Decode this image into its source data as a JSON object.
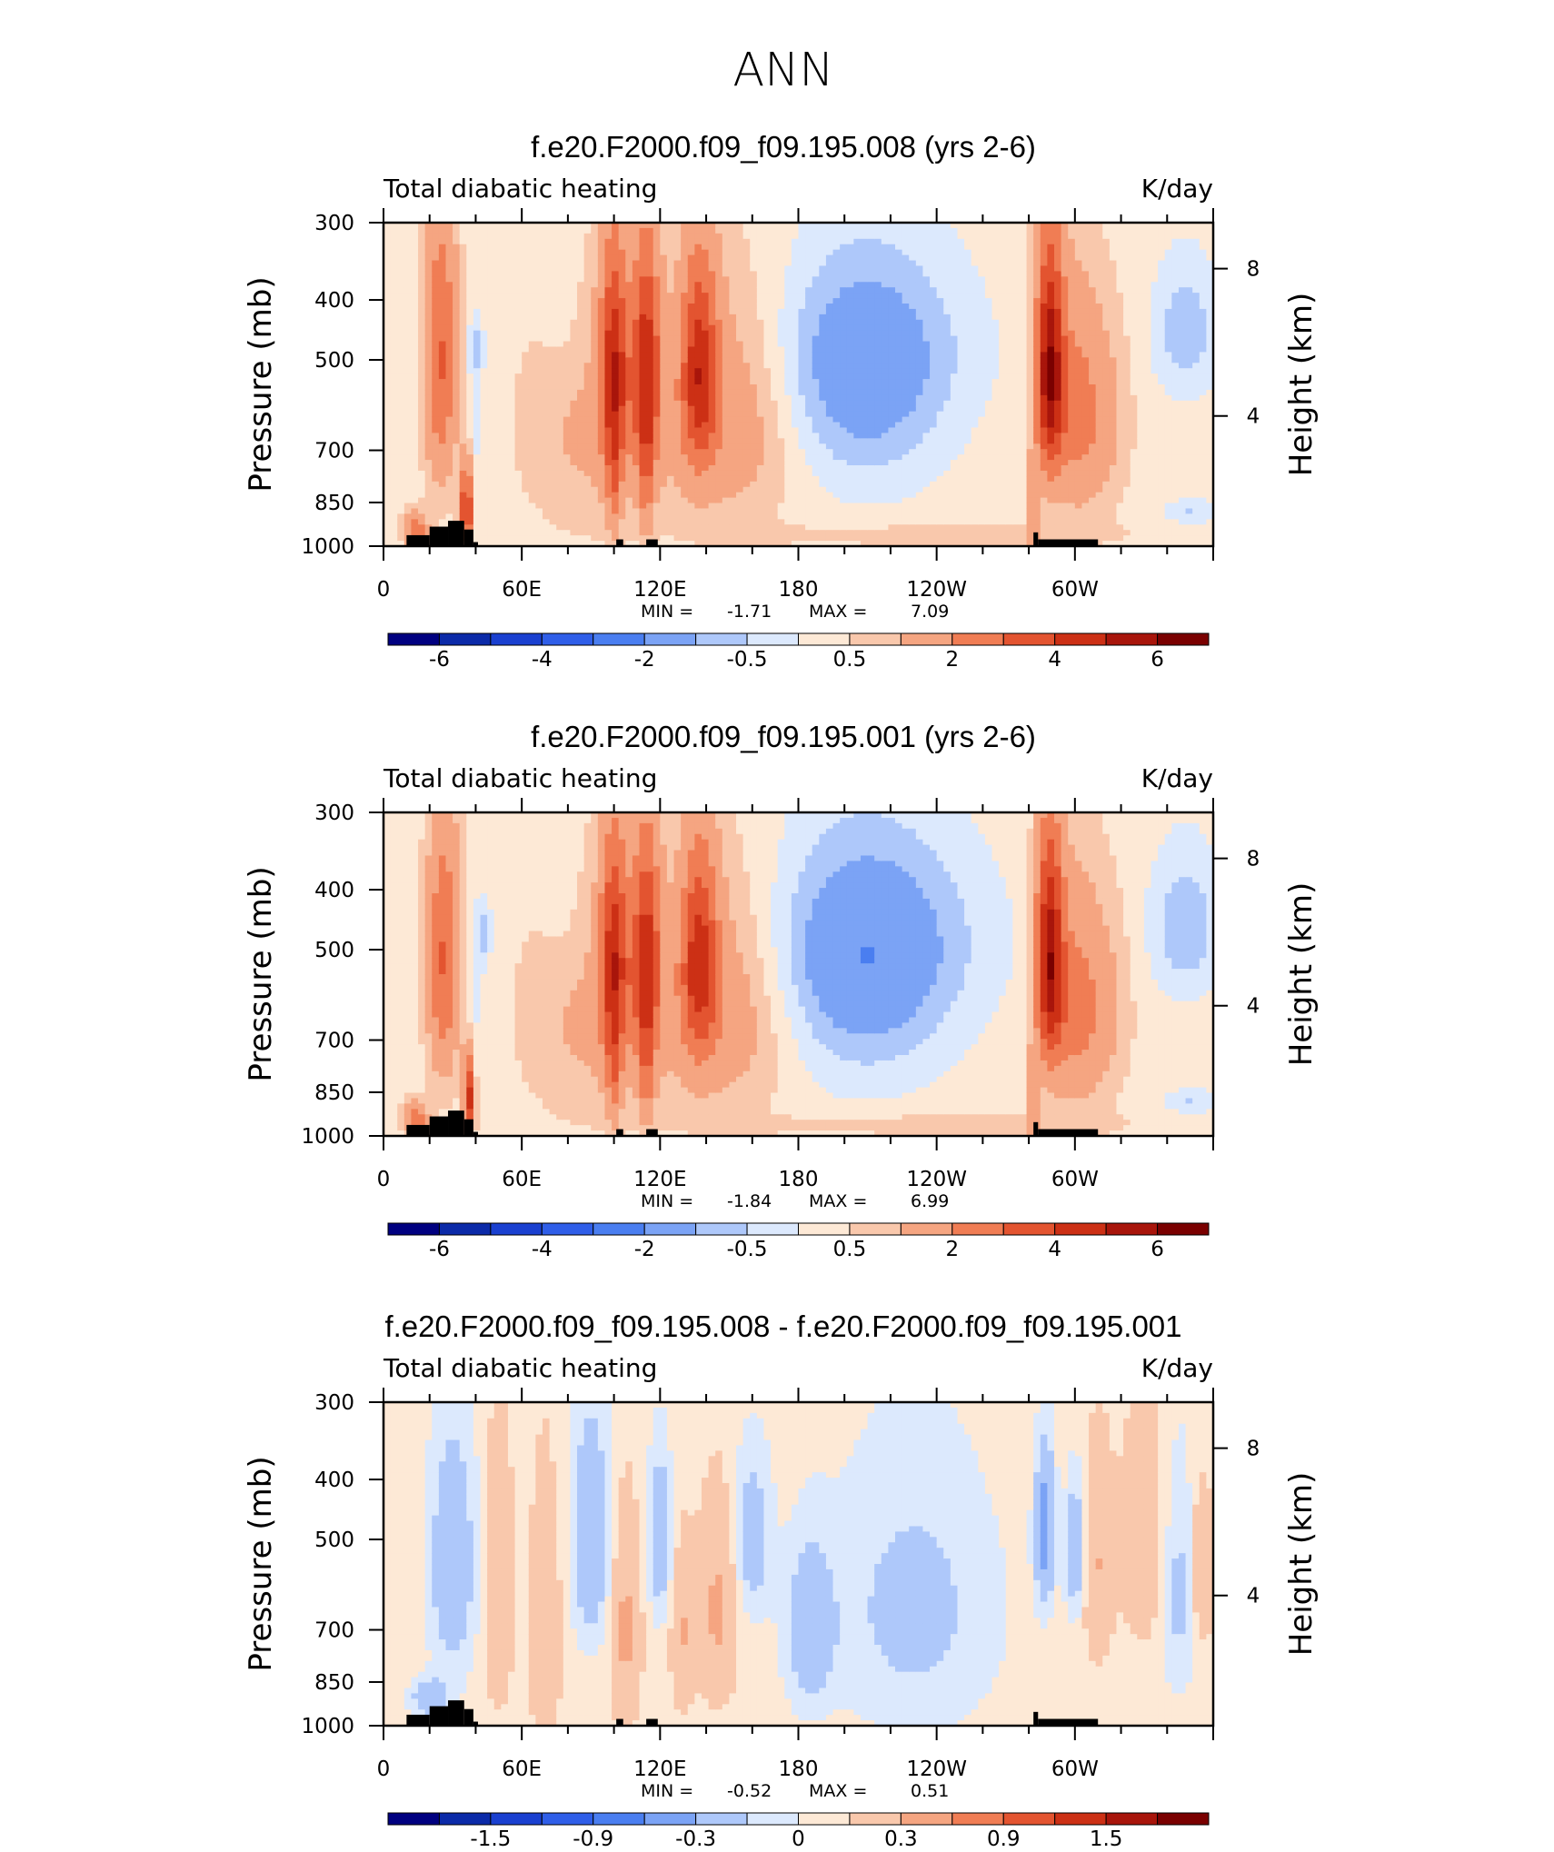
{
  "figure": {
    "main_title": "ANN"
  },
  "chart_data": [
    {
      "type": "heatmap",
      "title": "f.e20.F2000.f09_f09.195.008 (yrs 2-6)",
      "left_label": "Total diabatic heating",
      "right_label": "K/day",
      "xlabel": "",
      "ylabel": "Pressure (mb)",
      "ylabel_right": "Height (km)",
      "x_ticks": [
        "0",
        "60E",
        "120E",
        "180",
        "120W",
        "60W"
      ],
      "y_ticks": [
        "300",
        "400",
        "500",
        "700",
        "850",
        "1000"
      ],
      "y_right_ticks": [
        "8",
        "4"
      ],
      "xlim": [
        0,
        360
      ],
      "ylim": [
        1000,
        300
      ],
      "stats": {
        "min_label": "MIN =",
        "min": "-1.71",
        "max_label": "MAX =",
        "max": "7.09"
      },
      "colorbar": {
        "colors": [
          "#000080",
          "#0b2aa8",
          "#1a40d0",
          "#2f5ee8",
          "#4a7ef0",
          "#7ba3f5",
          "#aec8fa",
          "#dce9fd",
          "#fde9d6",
          "#f9c8ac",
          "#f5a581",
          "#f07d54",
          "#e35430",
          "#cc3015",
          "#a8150b",
          "#7a0000"
        ],
        "tick_labels": [
          "-6",
          "-4",
          "-2",
          "-0.5",
          "0.5",
          "2",
          "4",
          "6"
        ]
      },
      "features": [
        {
          "kind": "blob",
          "lon": 208,
          "p": 560,
          "rlon": 35,
          "rp": 230,
          "v": -1.4
        },
        {
          "kind": "blob",
          "lon": 212,
          "p": 470,
          "rlon": 45,
          "rp": 150,
          "v": -0.8
        },
        {
          "kind": "blob",
          "lon": 348,
          "p": 450,
          "rlon": 14,
          "rp": 110,
          "v": -1.1
        },
        {
          "kind": "blob",
          "lon": 350,
          "p": 880,
          "rlon": 10,
          "rp": 40,
          "v": -0.8
        },
        {
          "kind": "blob",
          "lon": 40,
          "p": 480,
          "rlon": 3,
          "rp": 40,
          "v": -1.0
        },
        {
          "kind": "blob",
          "lon": 40,
          "p": 620,
          "rlon": 5,
          "rp": 280,
          "v": -0.4
        },
        {
          "kind": "blob",
          "lon": 78,
          "p": 450,
          "rlon": 10,
          "rp": 120,
          "v": -0.3
        },
        {
          "kind": "blob",
          "lon": 25,
          "p": 500,
          "rlon": 7,
          "rp": 260,
          "v": 2.8
        },
        {
          "kind": "blob",
          "lon": 36,
          "p": 870,
          "rlon": 2.5,
          "rp": 140,
          "v": 4.5
        },
        {
          "kind": "blob",
          "lon": 14,
          "p": 940,
          "rlon": 5,
          "rp": 60,
          "v": 2.5
        },
        {
          "kind": "blob",
          "lon": 100,
          "p": 520,
          "rlon": 6,
          "rp": 220,
          "v": 4.2
        },
        {
          "kind": "blob",
          "lon": 114,
          "p": 520,
          "rlon": 6,
          "rp": 220,
          "v": 4.2
        },
        {
          "kind": "blob",
          "lon": 100,
          "p": 800,
          "rlon": 3,
          "rp": 160,
          "v": 1.5
        },
        {
          "kind": "blob",
          "lon": 114,
          "p": 800,
          "rlon": 3,
          "rp": 160,
          "v": 1.5
        },
        {
          "kind": "blob",
          "lon": 137,
          "p": 520,
          "rlon": 8,
          "rp": 200,
          "v": 3.8
        },
        {
          "kind": "blob",
          "lon": 150,
          "p": 620,
          "rlon": 28,
          "rp": 270,
          "v": 1.4
        },
        {
          "kind": "blob",
          "lon": 90,
          "p": 640,
          "rlon": 30,
          "rp": 280,
          "v": 0.9
        },
        {
          "kind": "blob",
          "lon": 289,
          "p": 520,
          "rlon": 6,
          "rp": 220,
          "v": 5.6
        },
        {
          "kind": "blob",
          "lon": 282,
          "p": 870,
          "rlon": 2,
          "rp": 150,
          "v": 2.2
        },
        {
          "kind": "blob",
          "lon": 300,
          "p": 600,
          "rlon": 10,
          "rp": 250,
          "v": 1.8
        },
        {
          "kind": "blob",
          "lon": 312,
          "p": 620,
          "rlon": 12,
          "rp": 230,
          "v": 1.0
        },
        {
          "kind": "blob",
          "lon": 240,
          "p": 960,
          "rlon": 80,
          "rp": 40,
          "v": 0.6
        }
      ],
      "background_value": 0.25,
      "topography": [
        [
          10,
          20,
          960
        ],
        [
          20,
          28,
          930
        ],
        [
          28,
          35,
          910
        ],
        [
          35,
          39,
          940
        ],
        [
          39,
          41,
          985
        ],
        [
          101,
          104,
          975
        ],
        [
          114,
          119,
          975
        ],
        [
          282,
          284,
          950
        ],
        [
          284,
          310,
          975
        ]
      ]
    },
    {
      "type": "heatmap",
      "title": "f.e20.F2000.f09_f09.195.001 (yrs 2-6)",
      "left_label": "Total diabatic heating",
      "right_label": "K/day",
      "xlabel": "",
      "ylabel": "Pressure (mb)",
      "ylabel_right": "Height (km)",
      "x_ticks": [
        "0",
        "60E",
        "120E",
        "180",
        "120W",
        "60W"
      ],
      "y_ticks": [
        "300",
        "400",
        "500",
        "700",
        "850",
        "1000"
      ],
      "y_right_ticks": [
        "8",
        "4"
      ],
      "xlim": [
        0,
        360
      ],
      "ylim": [
        1000,
        300
      ],
      "stats": {
        "min_label": "MIN =",
        "min": "-1.84",
        "max_label": "MAX =",
        "max": "6.99"
      },
      "colorbar": {
        "colors": [
          "#000080",
          "#0b2aa8",
          "#1a40d0",
          "#2f5ee8",
          "#4a7ef0",
          "#7ba3f5",
          "#aec8fa",
          "#dce9fd",
          "#fde9d6",
          "#f9c8ac",
          "#f5a581",
          "#f07d54",
          "#e35430",
          "#cc3015",
          "#a8150b",
          "#7a0000"
        ],
        "tick_labels": [
          "-6",
          "-4",
          "-2",
          "-0.5",
          "0.5",
          "2",
          "4",
          "6"
        ]
      },
      "features": [
        {
          "kind": "blob",
          "lon": 208,
          "p": 560,
          "rlon": 38,
          "rp": 240,
          "v": -1.5
        },
        {
          "kind": "blob",
          "lon": 214,
          "p": 470,
          "rlon": 48,
          "rp": 160,
          "v": -0.9
        },
        {
          "kind": "blob",
          "lon": 348,
          "p": 460,
          "rlon": 15,
          "rp": 120,
          "v": -1.2
        },
        {
          "kind": "blob",
          "lon": 350,
          "p": 880,
          "rlon": 10,
          "rp": 40,
          "v": -0.8
        },
        {
          "kind": "blob",
          "lon": 44,
          "p": 470,
          "rlon": 3,
          "rp": 50,
          "v": -1.0
        },
        {
          "kind": "blob",
          "lon": 40,
          "p": 620,
          "rlon": 5,
          "rp": 280,
          "v": -0.4
        },
        {
          "kind": "blob",
          "lon": 78,
          "p": 450,
          "rlon": 10,
          "rp": 120,
          "v": -0.3
        },
        {
          "kind": "blob",
          "lon": 26,
          "p": 520,
          "rlon": 7,
          "rp": 250,
          "v": 2.8
        },
        {
          "kind": "blob",
          "lon": 37,
          "p": 870,
          "rlon": 2.5,
          "rp": 140,
          "v": 4.3
        },
        {
          "kind": "blob",
          "lon": 14,
          "p": 940,
          "rlon": 5,
          "rp": 60,
          "v": 2.4
        },
        {
          "kind": "blob",
          "lon": 100,
          "p": 520,
          "rlon": 6,
          "rp": 220,
          "v": 4.0
        },
        {
          "kind": "blob",
          "lon": 114,
          "p": 520,
          "rlon": 6,
          "rp": 220,
          "v": 4.0
        },
        {
          "kind": "blob",
          "lon": 100,
          "p": 800,
          "rlon": 3,
          "rp": 160,
          "v": 1.5
        },
        {
          "kind": "blob",
          "lon": 114,
          "p": 800,
          "rlon": 3,
          "rp": 160,
          "v": 1.5
        },
        {
          "kind": "blob",
          "lon": 137,
          "p": 520,
          "rlon": 8,
          "rp": 200,
          "v": 3.6
        },
        {
          "kind": "blob",
          "lon": 148,
          "p": 620,
          "rlon": 28,
          "rp": 270,
          "v": 1.4
        },
        {
          "kind": "blob",
          "lon": 90,
          "p": 640,
          "rlon": 30,
          "rp": 280,
          "v": 0.9
        },
        {
          "kind": "blob",
          "lon": 289,
          "p": 520,
          "rlon": 6,
          "rp": 220,
          "v": 5.4
        },
        {
          "kind": "blob",
          "lon": 282,
          "p": 870,
          "rlon": 2,
          "rp": 150,
          "v": 2.2
        },
        {
          "kind": "blob",
          "lon": 300,
          "p": 620,
          "rlon": 10,
          "rp": 250,
          "v": 1.8
        },
        {
          "kind": "blob",
          "lon": 312,
          "p": 620,
          "rlon": 12,
          "rp": 230,
          "v": 1.0
        },
        {
          "kind": "blob",
          "lon": 240,
          "p": 960,
          "rlon": 80,
          "rp": 40,
          "v": 0.6
        }
      ],
      "background_value": 0.25,
      "topography": [
        [
          10,
          20,
          960
        ],
        [
          20,
          28,
          930
        ],
        [
          28,
          35,
          910
        ],
        [
          35,
          39,
          940
        ],
        [
          39,
          41,
          985
        ],
        [
          101,
          104,
          975
        ],
        [
          114,
          119,
          975
        ],
        [
          282,
          284,
          950
        ],
        [
          284,
          310,
          975
        ]
      ]
    },
    {
      "type": "heatmap",
      "title": "f.e20.F2000.f09_f09.195.008 - f.e20.F2000.f09_f09.195.001",
      "left_label": "Total diabatic heating",
      "right_label": "K/day",
      "xlabel": "",
      "ylabel": "Pressure (mb)",
      "ylabel_right": "Height (km)",
      "x_ticks": [
        "0",
        "60E",
        "120E",
        "180",
        "120W",
        "60W"
      ],
      "y_ticks": [
        "300",
        "400",
        "500",
        "700",
        "850",
        "1000"
      ],
      "y_right_ticks": [
        "8",
        "4"
      ],
      "xlim": [
        0,
        360
      ],
      "ylim": [
        1000,
        300
      ],
      "stats": {
        "min_label": "MIN =",
        "min": "-0.52",
        "max_label": "MAX =",
        "max": "0.51"
      },
      "colorbar": {
        "colors": [
          "#000080",
          "#0b2aa8",
          "#1a40d0",
          "#2f5ee8",
          "#4a7ef0",
          "#7ba3f5",
          "#aec8fa",
          "#dce9fd",
          "#fde9d6",
          "#f9c8ac",
          "#f5a581",
          "#f07d54",
          "#e35430",
          "#cc3015",
          "#a8150b",
          "#7a0000"
        ],
        "tick_labels": [
          "-1.5",
          "-0.9",
          "-0.3",
          "0",
          "0.3",
          "0.9",
          "1.5"
        ]
      },
      "features": [
        {
          "kind": "blob",
          "lon": 30,
          "p": 550,
          "rlon": 10,
          "rp": 250,
          "v": -0.3
        },
        {
          "kind": "blob",
          "lon": 20,
          "p": 900,
          "rlon": 8,
          "rp": 60,
          "v": -0.3
        },
        {
          "kind": "blob",
          "lon": 50,
          "p": 600,
          "rlon": 6,
          "rp": 300,
          "v": 0.2
        },
        {
          "kind": "blob",
          "lon": 70,
          "p": 700,
          "rlon": 6,
          "rp": 300,
          "v": 0.25
        },
        {
          "kind": "blob",
          "lon": 90,
          "p": 500,
          "rlon": 8,
          "rp": 200,
          "v": -0.35
        },
        {
          "kind": "blob",
          "lon": 105,
          "p": 700,
          "rlon": 6,
          "rp": 250,
          "v": 0.3
        },
        {
          "kind": "blob",
          "lon": 120,
          "p": 500,
          "rlon": 5,
          "rp": 150,
          "v": -0.3
        },
        {
          "kind": "blob",
          "lon": 130,
          "p": 700,
          "rlon": 5,
          "rp": 200,
          "v": 0.25
        },
        {
          "kind": "blob",
          "lon": 145,
          "p": 650,
          "rlon": 8,
          "rp": 220,
          "v": 0.3
        },
        {
          "kind": "blob",
          "lon": 160,
          "p": 500,
          "rlon": 8,
          "rp": 150,
          "v": -0.25
        },
        {
          "kind": "blob",
          "lon": 185,
          "p": 700,
          "rlon": 10,
          "rp": 200,
          "v": -0.3
        },
        {
          "kind": "blob",
          "lon": 230,
          "p": 650,
          "rlon": 35,
          "rp": 320,
          "v": -0.2
        },
        {
          "kind": "blob",
          "lon": 287,
          "p": 480,
          "rlon": 4,
          "rp": 130,
          "v": -0.5
        },
        {
          "kind": "blob",
          "lon": 300,
          "p": 520,
          "rlon": 4,
          "rp": 120,
          "v": -0.35
        },
        {
          "kind": "blob",
          "lon": 310,
          "p": 550,
          "rlon": 6,
          "rp": 200,
          "v": 0.25
        },
        {
          "kind": "blob",
          "lon": 330,
          "p": 500,
          "rlon": 10,
          "rp": 200,
          "v": 0.2
        },
        {
          "kind": "blob",
          "lon": 345,
          "p": 600,
          "rlon": 8,
          "rp": 250,
          "v": -0.2
        },
        {
          "kind": "blob",
          "lon": 355,
          "p": 560,
          "rlon": 5,
          "rp": 150,
          "v": 0.25
        }
      ],
      "background_value": 0.05,
      "topography": [
        [
          10,
          20,
          960
        ],
        [
          20,
          28,
          930
        ],
        [
          28,
          35,
          910
        ],
        [
          35,
          39,
          940
        ],
        [
          39,
          41,
          985
        ],
        [
          101,
          104,
          975
        ],
        [
          114,
          119,
          975
        ],
        [
          282,
          284,
          950
        ],
        [
          284,
          310,
          975
        ]
      ]
    }
  ]
}
